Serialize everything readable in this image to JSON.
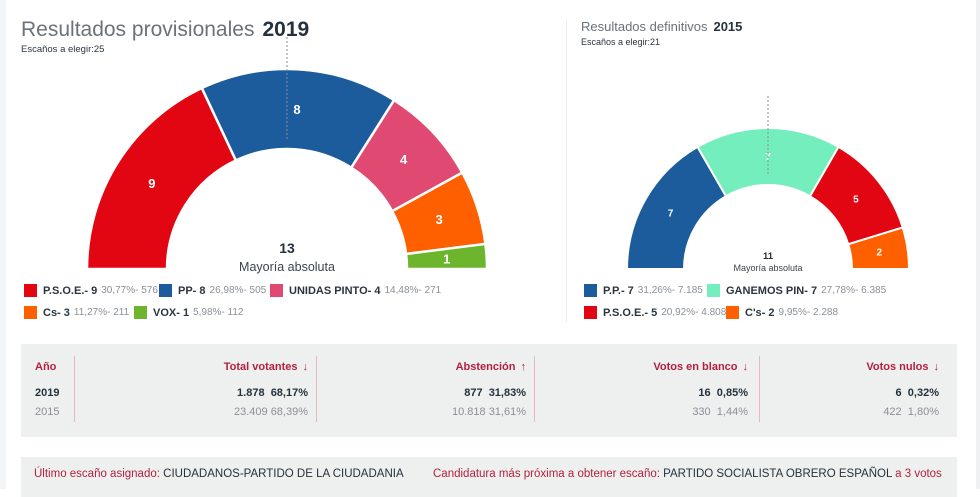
{
  "left_panel": {
    "title": "Resultados provisionales",
    "year": "2019",
    "seats_label": "Escaños a elegir:",
    "seats_total": "25",
    "majority_number": "13",
    "majority_label": "Mayoría absoluta",
    "legend": [
      {
        "name": "P.S.O.E.- 9",
        "stat": "30,77%- 576",
        "color": "#e20613"
      },
      {
        "name": "PP- 8",
        "stat": "26,98%- 505",
        "color": "#1c5b9c"
      },
      {
        "name": "UNIDAS PINTO- 4",
        "stat": "14,48%- 271",
        "color": "#e04a72"
      },
      {
        "name": "Cs- 3",
        "stat": "11,27%- 211",
        "color": "#fe6000"
      },
      {
        "name": "VOX- 1",
        "stat": "5,98%- 112",
        "color": "#6cb52d"
      }
    ]
  },
  "right_panel": {
    "title": "Resultados definitivos",
    "year": "2015",
    "seats_label": "Escaños a elegir:",
    "seats_total": "21",
    "majority_number": "11",
    "majority_label": "Mayoría absoluta",
    "legend": [
      {
        "name": "P.P.- 7",
        "stat": "31,26%- 7.185",
        "color": "#1c5b9c"
      },
      {
        "name": "GANEMOS PIN- 7",
        "stat": "27,78%- 6.385",
        "color": "#74eebc"
      },
      {
        "name": "P.S.O.E.- 5",
        "stat": "20,92%- 4.808",
        "color": "#e20613"
      },
      {
        "name": "C's- 2",
        "stat": "9,95%- 2.288",
        "color": "#fe6000"
      }
    ]
  },
  "chart_data": [
    {
      "type": "pie",
      "subtype": "parliament-semicircle",
      "title": "Resultados provisionales 2019",
      "total_seats": 25,
      "majority": 13,
      "series": [
        {
          "name": "P.S.O.E.",
          "seats": 9,
          "percent": 30.77,
          "votes": 576,
          "color": "#e20613"
        },
        {
          "name": "PP",
          "seats": 8,
          "percent": 26.98,
          "votes": 505,
          "color": "#1c5b9c"
        },
        {
          "name": "UNIDAS PINTO",
          "seats": 4,
          "percent": 14.48,
          "votes": 271,
          "color": "#e04a72"
        },
        {
          "name": "Cs",
          "seats": 3,
          "percent": 11.27,
          "votes": 211,
          "color": "#fe6000"
        },
        {
          "name": "VOX",
          "seats": 1,
          "percent": 5.98,
          "votes": 112,
          "color": "#6cb52d"
        }
      ],
      "legend": "bottom"
    },
    {
      "type": "pie",
      "subtype": "parliament-semicircle",
      "title": "Resultados definitivos 2015",
      "total_seats": 21,
      "majority": 11,
      "series": [
        {
          "name": "P.P.",
          "seats": 7,
          "percent": 31.26,
          "votes": 7185,
          "color": "#1c5b9c"
        },
        {
          "name": "GANEMOS PIN",
          "seats": 7,
          "percent": 27.78,
          "votes": 6385,
          "color": "#74eebc"
        },
        {
          "name": "P.S.O.E.",
          "seats": 5,
          "percent": 20.92,
          "votes": 4808,
          "color": "#e20613"
        },
        {
          "name": "C's",
          "seats": 2,
          "percent": 9.95,
          "votes": 2288,
          "color": "#fe6000"
        }
      ],
      "legend": "bottom"
    }
  ],
  "stats": {
    "year_header": "Año",
    "columns": [
      {
        "header": "Total votantes",
        "arrow": "↓",
        "row2019": {
          "count": "1.878",
          "pct": "68,17%"
        },
        "row2015": {
          "count": "23.409",
          "pct": "68,39%"
        }
      },
      {
        "header": "Abstención",
        "arrow": "↑",
        "row2019": {
          "count": "877",
          "pct": "31,83%"
        },
        "row2015": {
          "count": "10.818",
          "pct": "31,61%"
        }
      },
      {
        "header": "Votos en blanco",
        "arrow": "↓",
        "row2019": {
          "count": "16",
          "pct": "0,85%"
        },
        "row2015": {
          "count": "330",
          "pct": "1,44%"
        }
      },
      {
        "header": "Votos nulos",
        "arrow": "↓",
        "row2019": {
          "count": "6",
          "pct": "0,32%"
        },
        "row2015": {
          "count": "422",
          "pct": "1,80%"
        }
      }
    ],
    "years": [
      "2019",
      "2015"
    ]
  },
  "footer": {
    "last_seat_label": "Último escaño asignado:",
    "last_seat_value": "CIUDADANOS-PARTIDO DE LA CIUDADANIA",
    "next_label": "Candidatura más próxima a obtener escaño:",
    "next_value": "PARTIDO SOCIALISTA OBRERO ESPAÑOL",
    "next_suffix": "a 3 votos"
  }
}
